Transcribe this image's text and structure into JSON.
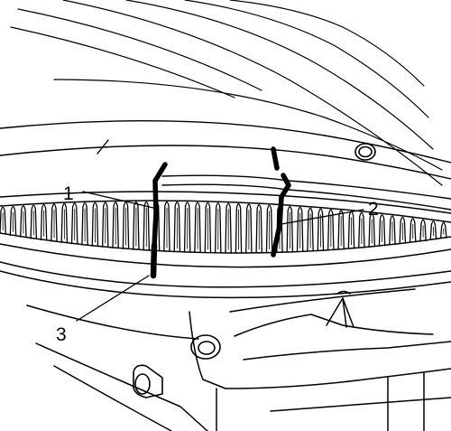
{
  "callouts": [
    {
      "number": "1",
      "target": "alignment-mark-left"
    },
    {
      "number": "2",
      "target": "alignment-mark-right"
    },
    {
      "number": "3",
      "target": "alignment-mark-on-ring-gear"
    }
  ],
  "colors": {
    "ink": "#000000",
    "paper": "#ffffff"
  }
}
